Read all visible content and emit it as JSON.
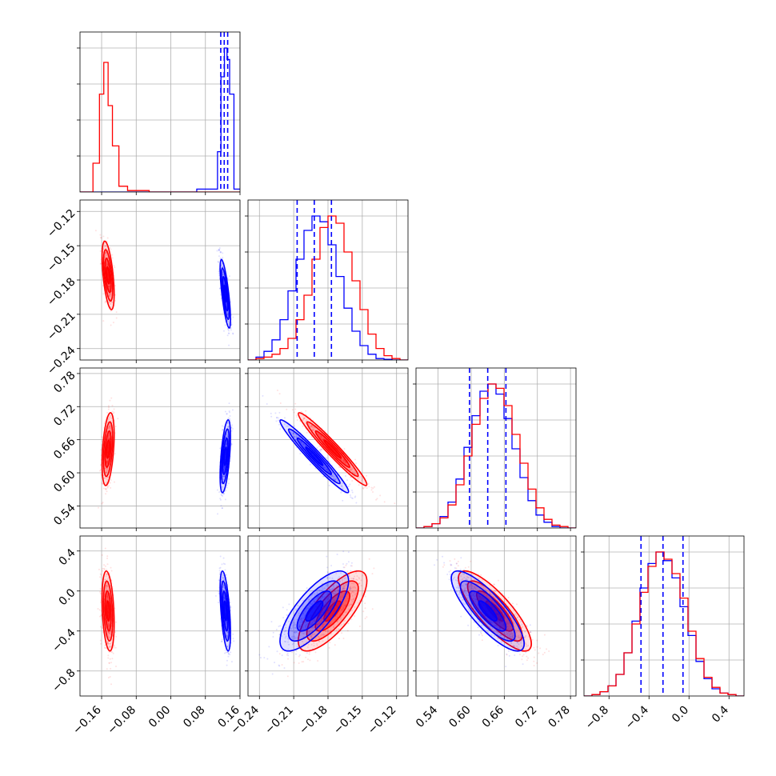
{
  "chart_data": {
    "type": "corner",
    "grid": true,
    "parameters": [
      {
        "index": 0,
        "range": [
          -0.21,
          0.16
        ],
        "ticks": [
          "−0.16",
          "−0.08",
          "0.00",
          "0.08",
          "0.16"
        ],
        "tick_values": [
          -0.16,
          -0.08,
          0.0,
          0.08,
          0.16
        ]
      },
      {
        "index": 1,
        "range": [
          -0.25,
          -0.11
        ],
        "ticks": [
          "−0.24",
          "−0.21",
          "−0.18",
          "−0.15",
          "−0.12"
        ],
        "tick_values": [
          -0.24,
          -0.21,
          -0.18,
          -0.15,
          -0.12
        ]
      },
      {
        "index": 2,
        "range": [
          0.5,
          0.79
        ],
        "ticks": [
          "0.54",
          "0.60",
          "0.66",
          "0.72",
          "0.78"
        ],
        "tick_values": [
          0.54,
          0.6,
          0.66,
          0.72,
          0.78
        ]
      },
      {
        "index": 3,
        "range": [
          -1.05,
          0.55
        ],
        "ticks": [
          "−0.8",
          "−0.4",
          "0.0",
          "0.4"
        ],
        "tick_values": [
          -0.8,
          -0.4,
          0.0,
          0.4
        ]
      }
    ],
    "series": [
      {
        "color": "#ff0000",
        "means": [
          -0.145,
          -0.176,
          0.643,
          -0.2
        ],
        "sds": [
          0.007,
          0.015,
          0.033,
          0.2
        ],
        "hist": [
          {
            "edges": [
              -0.21,
              -0.18,
              -0.165,
              -0.155,
              -0.145,
              -0.135,
              -0.12,
              -0.1,
              -0.05,
              0.16
            ],
            "counts": [
              0,
              0.2,
              0.68,
              0.9,
              0.6,
              0.32,
              0.04,
              0.01,
              0
            ]
          },
          {
            "x0": -0.25,
            "x1": -0.11,
            "bins": 20,
            "counts": [
              0,
              0.01,
              0.02,
              0.04,
              0.08,
              0.15,
              0.28,
              0.45,
              0.7,
              0.92,
              1.0,
              0.95,
              0.75,
              0.55,
              0.35,
              0.18,
              0.08,
              0.03,
              0.01,
              0
            ]
          },
          {
            "x0": 0.5,
            "x1": 0.79,
            "bins": 20,
            "counts": [
              0,
              0.01,
              0.03,
              0.07,
              0.16,
              0.3,
              0.5,
              0.72,
              0.9,
              1.0,
              0.97,
              0.85,
              0.65,
              0.45,
              0.27,
              0.14,
              0.06,
              0.02,
              0.01,
              0
            ]
          },
          {
            "x0": -1.05,
            "x1": 0.55,
            "bins": 20,
            "counts": [
              0,
              0.01,
              0.03,
              0.07,
              0.15,
              0.3,
              0.5,
              0.72,
              0.9,
              1.0,
              0.95,
              0.85,
              0.68,
              0.45,
              0.26,
              0.13,
              0.06,
              0.02,
              0.01,
              0
            ]
          }
        ]
      },
      {
        "color": "#0000ff",
        "means": [
          0.126,
          -0.192,
          0.63,
          -0.2
        ],
        "sds": [
          0.006,
          0.015,
          0.033,
          0.2
        ],
        "hist": [
          {
            "edges": [
              -0.21,
              0.06,
              0.108,
              0.116,
              0.124,
              0.13,
              0.136,
              0.146,
              0.16
            ],
            "counts": [
              0,
              0.02,
              0.28,
              0.8,
              1.0,
              0.92,
              0.68,
              0.02
            ]
          },
          {
            "x0": -0.25,
            "x1": -0.11,
            "bins": 20,
            "counts": [
              0,
              0.02,
              0.06,
              0.14,
              0.28,
              0.48,
              0.7,
              0.9,
              1.0,
              0.96,
              0.8,
              0.58,
              0.36,
              0.2,
              0.1,
              0.04,
              0.01,
              0.005,
              0,
              0
            ]
          },
          {
            "x0": 0.5,
            "x1": 0.79,
            "bins": 20,
            "counts": [
              0,
              0.01,
              0.03,
              0.08,
              0.18,
              0.34,
              0.56,
              0.78,
              0.95,
              1.0,
              0.93,
              0.76,
              0.55,
              0.35,
              0.19,
              0.09,
              0.04,
              0.01,
              0,
              0
            ]
          },
          {
            "x0": -1.05,
            "x1": 0.55,
            "bins": 20,
            "counts": [
              0,
              0.01,
              0.03,
              0.07,
              0.15,
              0.3,
              0.52,
              0.75,
              0.92,
              1.0,
              0.94,
              0.82,
              0.62,
              0.42,
              0.24,
              0.12,
              0.05,
              0.02,
              0.01,
              0
            ]
          }
        ]
      }
    ],
    "quantile_lines": [
      {
        "param": 0,
        "values": [
          0.1155,
          0.1235,
          0.1315
        ]
      },
      {
        "param": 1,
        "values": [
          -0.207,
          -0.192,
          -0.177
        ]
      },
      {
        "param": 2,
        "values": [
          0.597,
          0.63,
          0.663
        ]
      },
      {
        "param": 3,
        "values": [
          -0.48,
          -0.26,
          -0.06
        ]
      }
    ],
    "pair_correlations": [
      {
        "i": 1,
        "j": 0,
        "red": -0.55,
        "blue": -0.75
      },
      {
        "i": 2,
        "j": 0,
        "red": 0.4,
        "blue": 0.55
      },
      {
        "i": 2,
        "j": 1,
        "red": -0.97,
        "blue": -0.97
      },
      {
        "i": 3,
        "j": 0,
        "red": -0.3,
        "blue": -0.55
      },
      {
        "i": 3,
        "j": 1,
        "red": 0.75,
        "blue": 0.75
      },
      {
        "i": 3,
        "j": 2,
        "red": -0.82,
        "blue": -0.82
      }
    ]
  }
}
